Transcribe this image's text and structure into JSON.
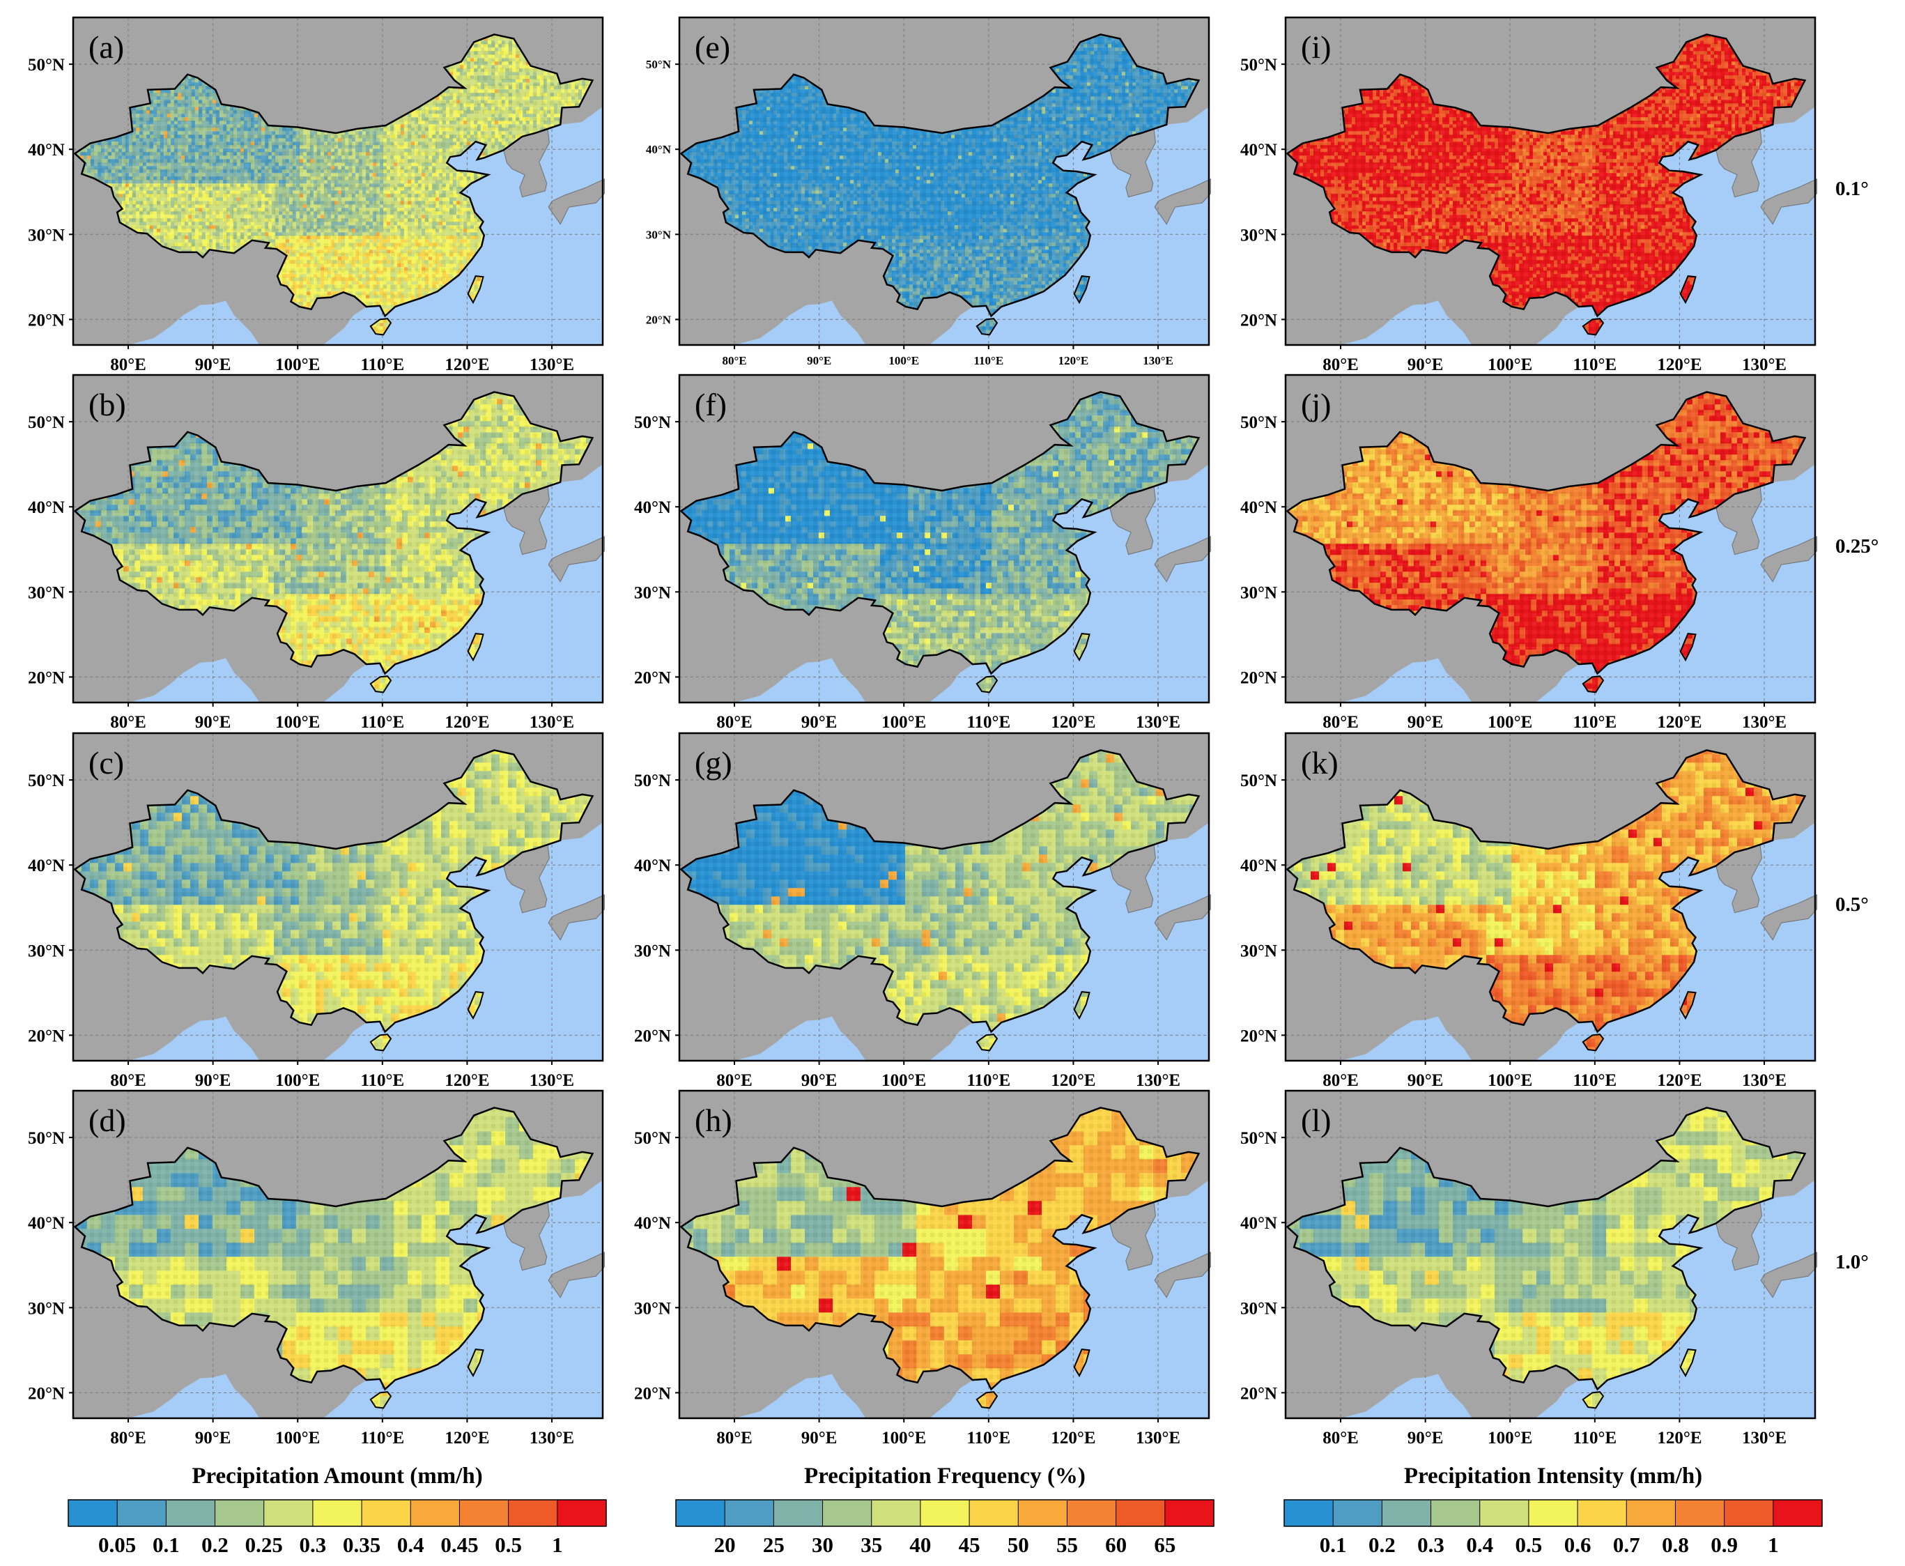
{
  "resolutions": [
    "0.1°",
    "0.25°",
    "0.5°",
    "1.0°"
  ],
  "panel_labels": [
    [
      "(a)",
      "(e)",
      "(i)"
    ],
    [
      "(b)",
      "(f)",
      "(j)"
    ],
    [
      "(c)",
      "(g)",
      "(k)"
    ],
    [
      "(d)",
      "(h)",
      "(l)"
    ]
  ],
  "axes": {
    "longitudes": [
      "80°E",
      "90°E",
      "100°E",
      "110°E",
      "120°E",
      "130°E"
    ],
    "latitudes": [
      "50°N",
      "40°N",
      "30°N",
      "20°N"
    ]
  },
  "columns": [
    {
      "title": "Precipitation Amount (mm/h)",
      "ticks": [
        "0.05",
        "0.1",
        "0.2",
        "0.25",
        "0.3",
        "0.35",
        "0.4",
        "0.45",
        "0.5",
        "1"
      ],
      "colors": [
        "#2891d1",
        "#4f9dc3",
        "#7fb2a8",
        "#a6c88f",
        "#d0e07c",
        "#f3f35e",
        "#fbd449",
        "#f7a93c",
        "#f38232",
        "#ee5a28",
        "#e8141a"
      ],
      "rows": [
        {
          "north": 2,
          "mid": 3,
          "south": 5,
          "hot": 7
        },
        {
          "north": 2,
          "mid": 3,
          "south": 5,
          "hot": 7
        },
        {
          "north": 2,
          "mid": 3,
          "south": 5,
          "hot": 6
        },
        {
          "north": 2,
          "mid": 3,
          "south": 5,
          "hot": 6
        }
      ]
    },
    {
      "title": "Precipitation Frequency (%)",
      "ticks": [
        "20",
        "25",
        "30",
        "35",
        "40",
        "45",
        "50",
        "55",
        "60",
        "65"
      ],
      "colors": [
        "#2891d1",
        "#4f9dc3",
        "#7fb2a8",
        "#a6c88f",
        "#d0e07c",
        "#f3f35e",
        "#fbd449",
        "#f7a93c",
        "#f38232",
        "#ee5a28",
        "#e8141a"
      ],
      "rows": [
        {
          "north": 0,
          "mid": 0,
          "south": 1,
          "hot": 3
        },
        {
          "north": 0,
          "mid": 1,
          "south": 3,
          "hot": 5
        },
        {
          "north": 0,
          "mid": 3,
          "south": 4,
          "hot": 7
        },
        {
          "north": 3,
          "mid": 6,
          "south": 7,
          "hot": 10
        }
      ]
    },
    {
      "title": "Precipitation Intensity (mm/h)",
      "ticks": [
        "0.1",
        "0.2",
        "0.3",
        "0.4",
        "0.5",
        "0.6",
        "0.7",
        "0.8",
        "0.9",
        "1"
      ],
      "colors": [
        "#2891d1",
        "#4f9dc3",
        "#7fb2a8",
        "#a6c88f",
        "#d0e07c",
        "#f3f35e",
        "#fbd449",
        "#f7a93c",
        "#f38232",
        "#ee5a28",
        "#e8141a"
      ],
      "rows": [
        {
          "north": 10,
          "mid": 9,
          "south": 10,
          "hot": 10
        },
        {
          "north": 7,
          "mid": 8,
          "south": 10,
          "hot": 10
        },
        {
          "north": 4,
          "mid": 6,
          "south": 8,
          "hot": 10
        },
        {
          "north": 2,
          "mid": 3,
          "south": 5,
          "hot": 6
        }
      ]
    }
  ]
}
